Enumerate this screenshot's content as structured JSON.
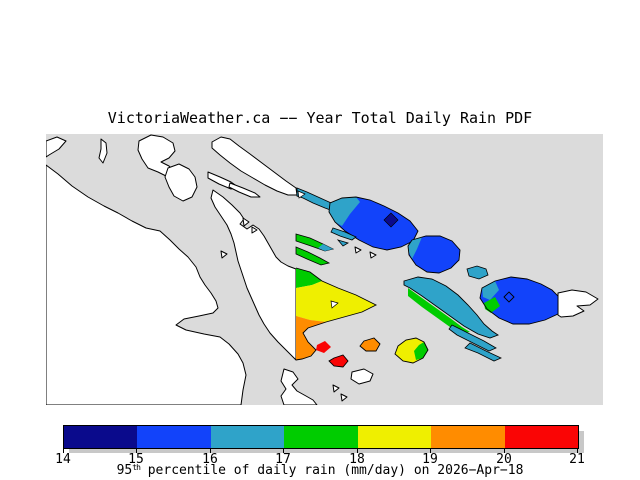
{
  "title": {
    "text": "VictoriaWeather.ca −− Year Total Daily Rain PDF"
  },
  "caption": {
    "value": "95",
    "superscript": "th",
    "rest": " percentile of daily rain (mm/day) on 2026−Apr−18",
    "full": "95th percentile of daily rain (mm/day) on 2026-Apr-18"
  },
  "colorbar": {
    "min": 14,
    "max": 21,
    "units": "mm/day",
    "ticks": [
      "14",
      "15",
      "16",
      "17",
      "18",
      "19",
      "20",
      "21"
    ],
    "segment_colors": [
      "#0A0A8C",
      "#1243FA",
      "#2FA3C9",
      "#00CC00",
      "#EFEF00",
      "#FF8C00",
      "#FA0505"
    ],
    "border_color": "#000000",
    "shadow_color": "#C8C8C8"
  },
  "map": {
    "colors": {
      "sea": "#DBDBDB",
      "land": "#FFFFFF",
      "coast": "#000000",
      "navy": "#0A0A8C",
      "blue": "#1243FA",
      "teal": "#2FA3C9",
      "green": "#00CC00",
      "yellow": "#EFEF00",
      "orange": "#FF8C00",
      "red": "#FA0505"
    },
    "markers": {
      "filled_diamond_color": "#0A0A8C",
      "open_diamond_color": "#000000"
    }
  }
}
